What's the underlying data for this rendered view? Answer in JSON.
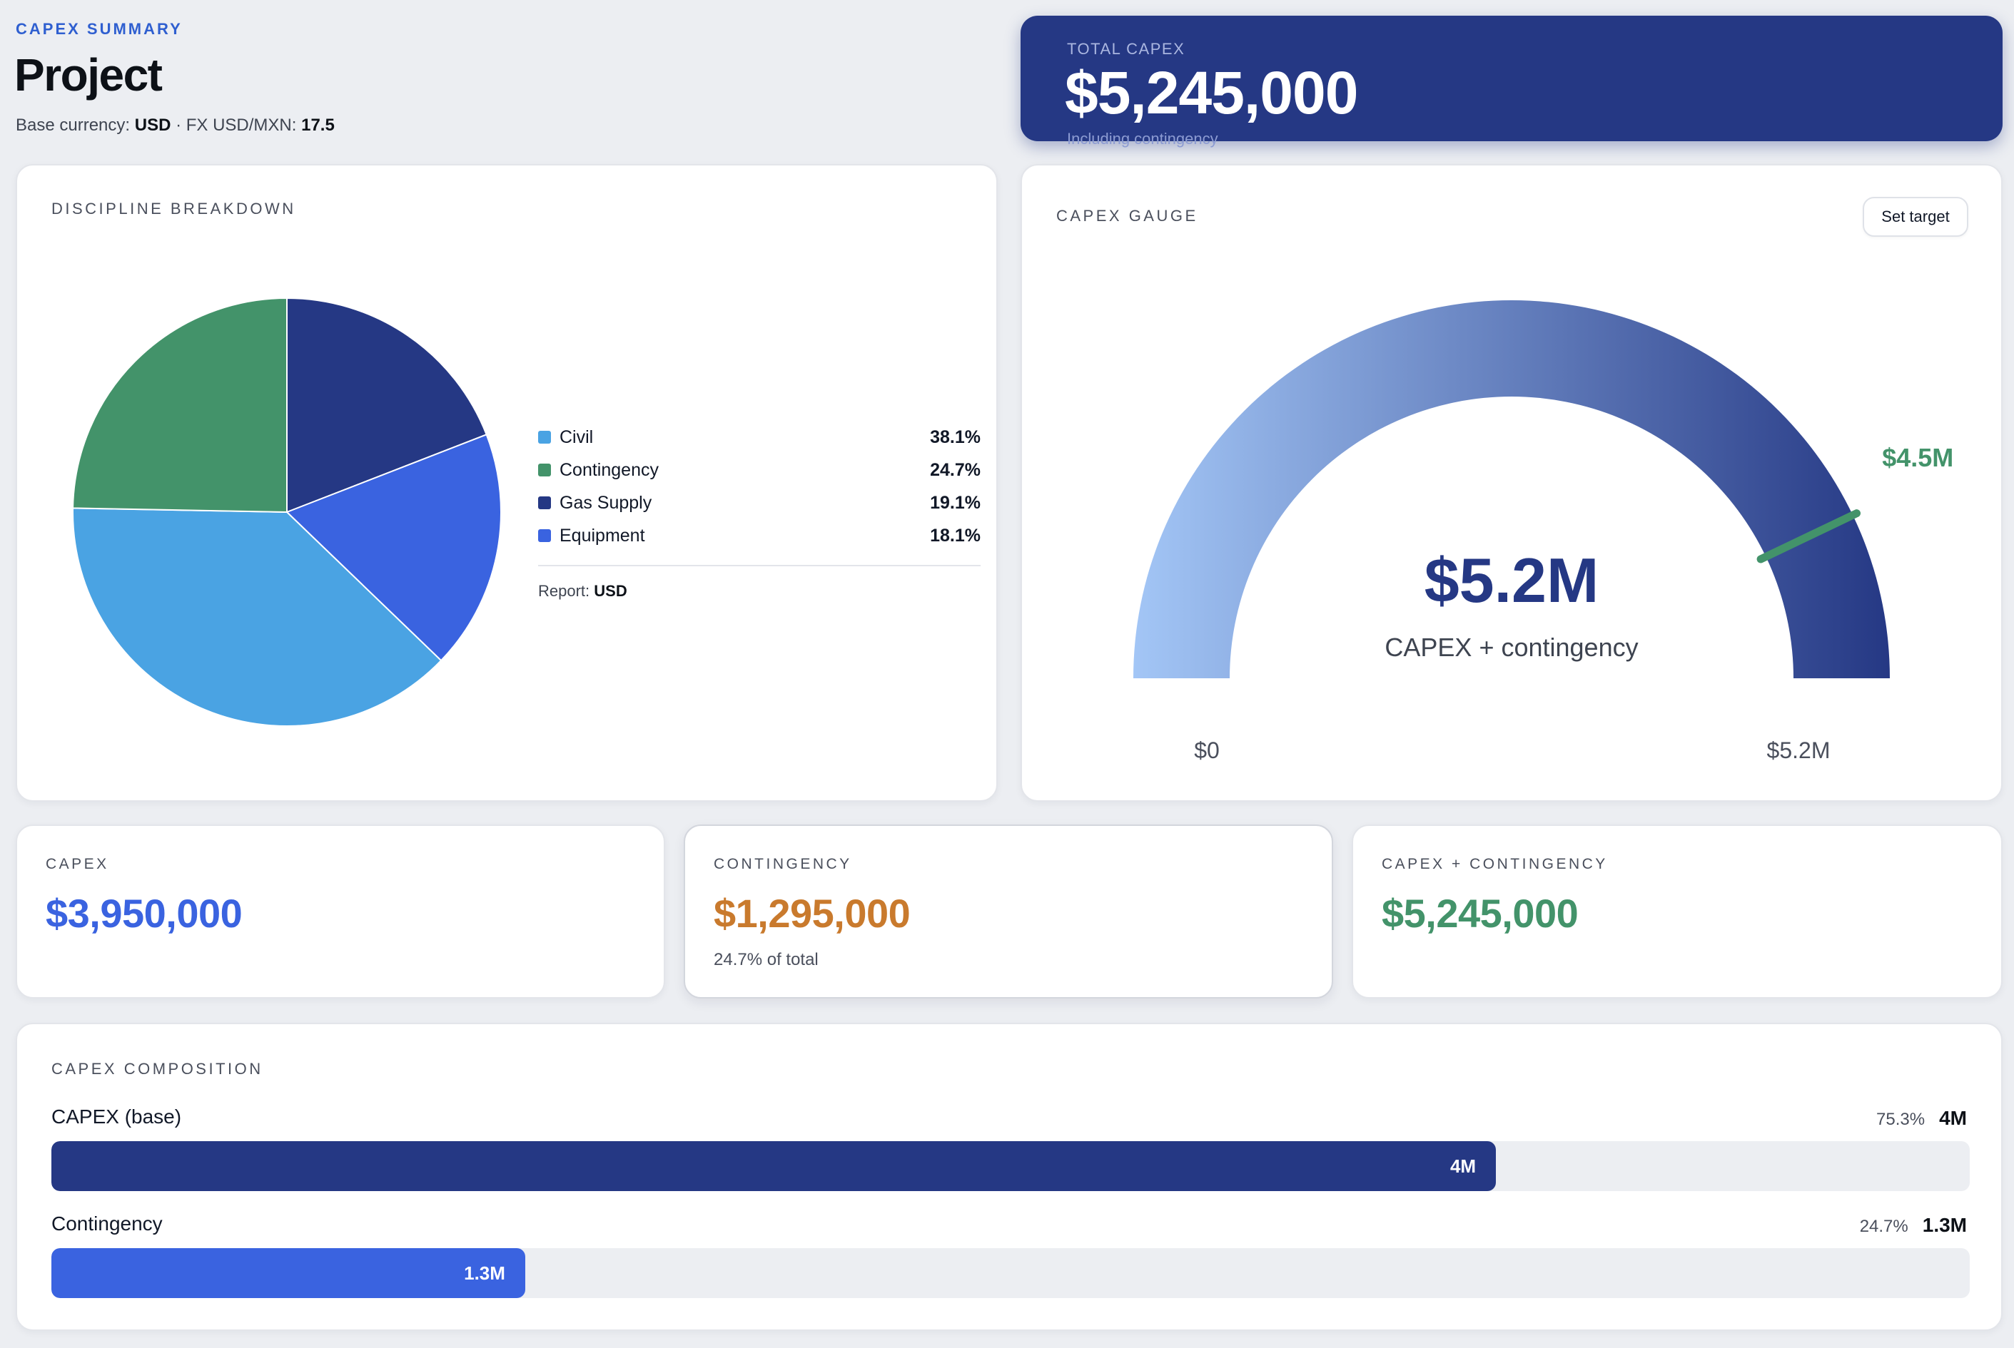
{
  "header": {
    "kicker": "CAPEX SUMMARY",
    "title": "Project",
    "base_currency_label": "Base currency:",
    "base_currency": "USD",
    "fx_label": "· FX USD/MXN:",
    "fx_rate": "17.5"
  },
  "total": {
    "label": "TOTAL CAPEX",
    "value": "$5,245,000",
    "note": "Including contingency"
  },
  "discipline": {
    "title": "DISCIPLINE BREAKDOWN",
    "report_label": "Report:",
    "report_currency": "USD",
    "items": [
      {
        "name": "Civil",
        "pct": "38.1%",
        "color": "#4aa3e3"
      },
      {
        "name": "Contingency",
        "pct": "24.7%",
        "color": "#43936a"
      },
      {
        "name": "Gas Supply",
        "pct": "19.1%",
        "color": "#253884"
      },
      {
        "name": "Equipment",
        "pct": "18.1%",
        "color": "#3a63e0"
      }
    ]
  },
  "gauge": {
    "title": "CAPEX GAUGE",
    "set_target_label": "Set target",
    "value": 5.245,
    "max": 5.245,
    "target": 4.5,
    "value_label": "$5.2M",
    "caption": "CAPEX + contingency",
    "min_label": "$0",
    "max_label": "$5.2M",
    "target_label": "$4.5M",
    "colors": {
      "start": "#a3c6f6",
      "end": "#253884",
      "target": "#43936a"
    }
  },
  "stats": [
    {
      "label": "CAPEX",
      "value": "$3,950,000",
      "note": "",
      "color": "#3a63e0"
    },
    {
      "label": "CONTINGENCY",
      "value": "$1,295,000",
      "note": "24.7% of total",
      "color": "#c97a2d"
    },
    {
      "label": "CAPEX + CONTINGENCY",
      "value": "$5,245,000",
      "note": "",
      "color": "#43936a"
    }
  ],
  "composition": {
    "title": "CAPEX COMPOSITION",
    "rows": [
      {
        "label": "CAPEX (base)",
        "pct_label": "75.3%",
        "pct": 0.753,
        "amount": "4M",
        "bar_label": "4M",
        "color": "#253884"
      },
      {
        "label": "Contingency",
        "pct_label": "24.7%",
        "pct": 0.247,
        "amount": "1.3M",
        "bar_label": "1.3M",
        "color": "#3a63e0"
      }
    ]
  },
  "chart_data": {
    "type": "pie",
    "categories": [
      "Civil",
      "Contingency",
      "Gas Supply",
      "Equipment"
    ],
    "values": [
      38.1,
      24.7,
      19.1,
      18.1
    ],
    "colors": [
      "#4aa3e3",
      "#43936a",
      "#253884",
      "#3a63e0"
    ],
    "title": "DISCIPLINE BREAKDOWN",
    "legend": "right"
  }
}
